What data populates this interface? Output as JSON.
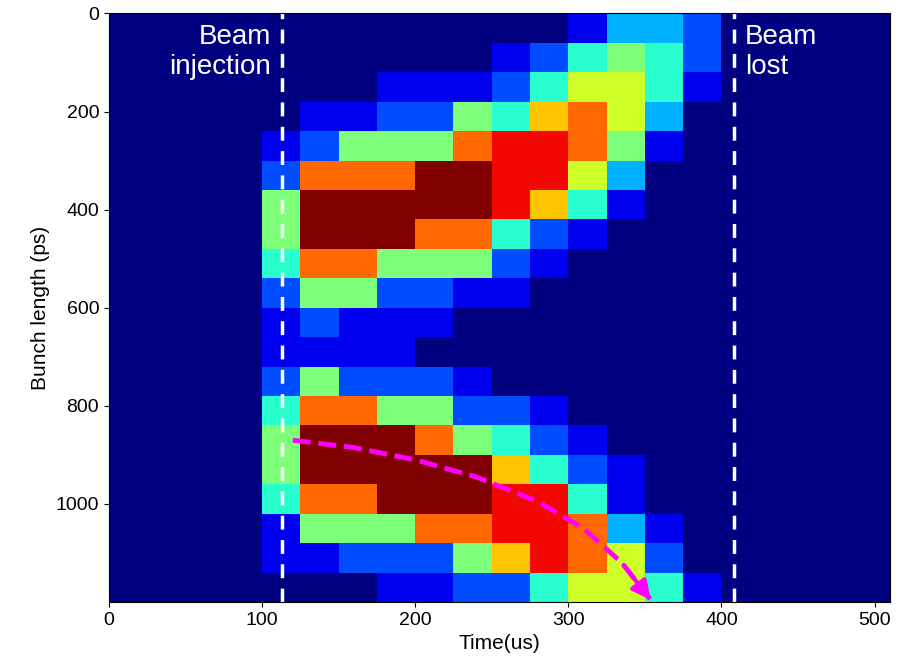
{
  "chart_data": {
    "type": "heatmap",
    "x_label": "Time(us)",
    "y_label": "Bunch length (ps)",
    "xlim": [
      0,
      510
    ],
    "xticks": [
      0,
      100,
      200,
      300,
      400,
      500
    ],
    "ylim": [
      1200,
      0
    ],
    "yticks": [
      0,
      200,
      400,
      600,
      800,
      1000
    ],
    "x_edges": [
      0,
      25,
      50,
      75,
      100,
      125,
      150,
      175,
      200,
      225,
      250,
      275,
      300,
      325,
      350,
      375,
      400,
      425,
      450,
      475,
      500,
      510
    ],
    "y_edges": [
      0,
      60,
      120,
      180,
      240,
      300,
      360,
      420,
      480,
      540,
      600,
      660,
      720,
      780,
      840,
      900,
      960,
      1020,
      1080,
      1140,
      1200
    ],
    "color_range": [
      0,
      10
    ],
    "cells": [
      [
        0,
        0,
        0,
        0,
        0,
        0,
        0,
        0,
        0,
        0,
        0,
        0,
        0,
        0,
        0,
        0,
        0,
        0,
        0,
        0
      ],
      [
        0,
        0,
        0,
        0,
        0,
        0,
        0,
        0,
        0,
        0,
        0,
        0,
        0,
        0,
        0,
        0,
        0,
        0,
        0,
        0
      ],
      [
        0,
        0,
        0,
        0,
        0,
        0,
        0,
        0,
        0,
        0,
        0,
        0,
        0,
        0,
        0,
        0,
        0,
        0,
        0,
        0
      ],
      [
        0,
        0,
        0,
        0,
        0,
        0,
        0,
        0,
        0,
        0,
        0,
        0,
        0,
        0,
        0,
        0,
        0,
        0,
        0,
        0
      ],
      [
        0,
        0,
        0,
        0,
        1,
        2,
        5,
        5,
        4,
        2,
        1,
        1,
        2,
        4,
        5,
        5,
        4,
        1,
        1,
        0
      ],
      [
        0,
        0,
        0,
        1,
        2,
        8,
        10,
        10,
        8,
        5,
        2,
        1,
        5,
        8,
        10,
        10,
        8,
        5,
        1,
        0
      ],
      [
        0,
        0,
        0,
        1,
        5,
        8,
        10,
        10,
        8,
        5,
        1,
        1,
        2,
        8,
        10,
        10,
        8,
        5,
        2,
        0
      ],
      [
        0,
        0,
        1,
        2,
        5,
        8,
        10,
        10,
        5,
        2,
        1,
        1,
        2,
        5,
        10,
        10,
        10,
        5,
        2,
        1
      ],
      [
        0,
        0,
        1,
        2,
        5,
        10,
        10,
        8,
        5,
        2,
        1,
        0,
        2,
        5,
        8,
        10,
        10,
        8,
        2,
        1
      ],
      [
        0,
        0,
        1,
        5,
        8,
        10,
        10,
        8,
        5,
        1,
        0,
        0,
        1,
        2,
        5,
        10,
        10,
        8,
        5,
        2
      ],
      [
        0,
        1,
        2,
        4,
        9,
        9,
        9,
        4,
        2,
        1,
        0,
        0,
        0,
        2,
        4,
        7,
        9,
        9,
        7,
        2
      ],
      [
        0,
        2,
        4,
        7,
        9,
        9,
        7,
        2,
        1,
        0,
        0,
        0,
        0,
        1,
        2,
        4,
        9,
        9,
        9,
        4
      ],
      [
        1,
        4,
        6,
        8,
        8,
        6,
        4,
        1,
        0,
        0,
        0,
        0,
        0,
        0,
        1,
        2,
        4,
        8,
        8,
        6
      ],
      [
        3,
        5,
        6,
        6,
        5,
        3,
        1,
        0,
        0,
        0,
        0,
        0,
        0,
        0,
        0,
        1,
        1,
        3,
        6,
        6
      ],
      [
        3,
        4,
        4,
        3,
        1,
        0,
        0,
        0,
        0,
        0,
        0,
        0,
        0,
        0,
        0,
        0,
        0,
        1,
        2,
        4
      ],
      [
        2,
        2,
        1,
        0,
        0,
        0,
        0,
        0,
        0,
        0,
        0,
        0,
        0,
        0,
        0,
        0,
        0,
        0,
        0,
        1
      ],
      [
        0,
        0,
        0,
        0,
        0,
        0,
        0,
        0,
        0,
        0,
        0,
        0,
        0,
        0,
        0,
        0,
        0,
        0,
        0,
        0
      ],
      [
        0,
        0,
        0,
        0,
        0,
        0,
        0,
        0,
        0,
        0,
        0,
        0,
        0,
        0,
        0,
        0,
        0,
        0,
        0,
        0
      ],
      [
        0,
        0,
        0,
        0,
        0,
        0,
        0,
        0,
        0,
        0,
        0,
        0,
        0,
        0,
        0,
        0,
        0,
        0,
        0,
        0
      ],
      [
        0,
        0,
        0,
        0,
        0,
        0,
        0,
        0,
        0,
        0,
        0,
        0,
        0,
        0,
        0,
        0,
        0,
        0,
        0,
        0
      ],
      [
        0,
        0,
        0,
        0,
        0,
        0,
        0,
        0,
        0,
        0,
        0,
        0,
        0,
        0,
        0,
        0,
        0,
        0,
        0,
        0
      ]
    ],
    "annotations": [
      {
        "text": "Beam\ninjection",
        "x": 113
      },
      {
        "text": "Beam\nlost",
        "x": 408
      }
    ],
    "arrow": {
      "x": [
        120,
        160,
        200,
        240,
        280,
        310,
        335,
        355
      ],
      "y": [
        870,
        885,
        910,
        945,
        995,
        1050,
        1120,
        1200
      ],
      "color": "#ff00ff",
      "line_style": "dashed"
    }
  }
}
